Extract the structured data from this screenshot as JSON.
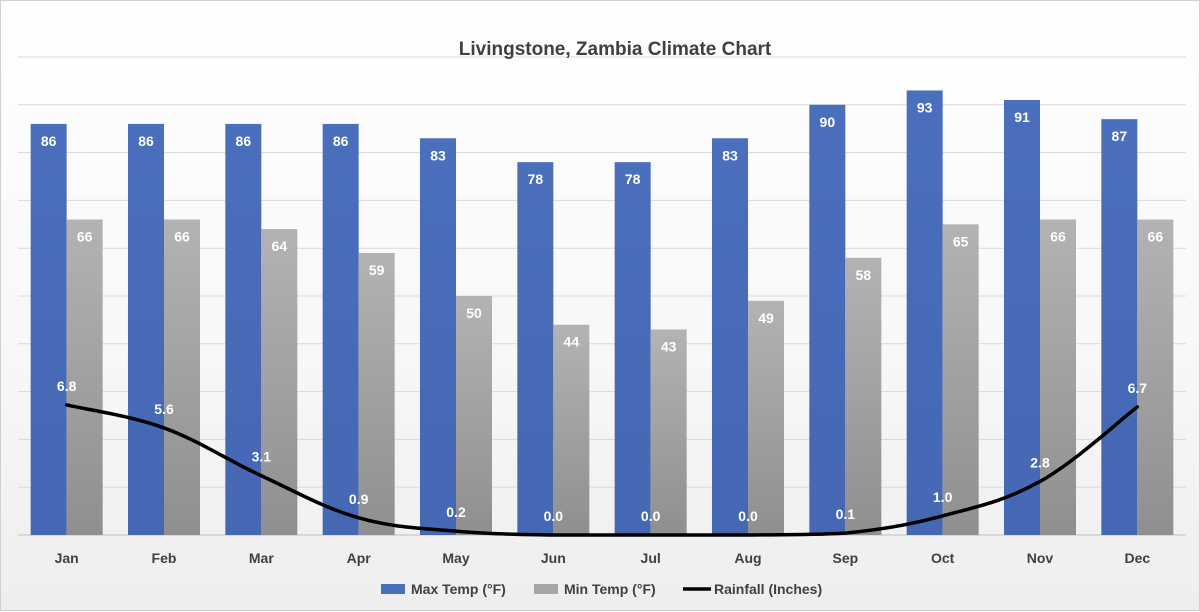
{
  "chart_data": {
    "type": "bar",
    "title": "Livingstone, Zambia Climate Chart",
    "categories": [
      "Jan",
      "Feb",
      "Mar",
      "Apr",
      "May",
      "Jun",
      "Jul",
      "Aug",
      "Sep",
      "Oct",
      "Nov",
      "Dec"
    ],
    "series": [
      {
        "name": "Max Temp (°F)",
        "kind": "bar",
        "color": "#4a6fbd",
        "values": [
          86,
          86,
          86,
          86,
          83,
          78,
          78,
          83,
          90,
          93,
          91,
          87
        ]
      },
      {
        "name": "Min Temp (°F)",
        "kind": "bar",
        "color": "#a6a6a6",
        "values": [
          66,
          66,
          64,
          59,
          50,
          44,
          43,
          49,
          58,
          65,
          66,
          66
        ]
      },
      {
        "name": "Rainfall (Inches)",
        "kind": "line",
        "color": "#000000",
        "values": [
          6.8,
          5.6,
          3.1,
          0.9,
          0.2,
          0.0,
          0.0,
          0.0,
          0.1,
          1.0,
          2.8,
          6.7
        ],
        "labels": [
          "6.8",
          "5.6",
          "3.1",
          "0.9",
          "0.2",
          "0.0",
          "0.0",
          "0.0",
          "0.1",
          "1.0",
          "2.8",
          "6.7"
        ]
      }
    ],
    "ylim": [
      0,
      100
    ],
    "rainfall_ylim": [
      0,
      25
    ],
    "grid": true,
    "legend_position": "bottom"
  }
}
